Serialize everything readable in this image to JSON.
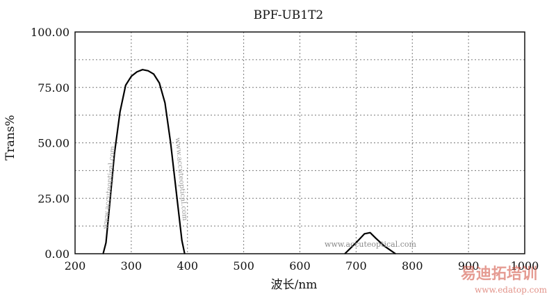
{
  "chart_data": {
    "type": "line",
    "title": "BPF-UB1T2",
    "xlabel": "波长/nm",
    "ylabel": "Trans%",
    "xlim": [
      200,
      1000
    ],
    "ylim": [
      0,
      100
    ],
    "x_ticks": [
      "200",
      "300",
      "400",
      "500",
      "600",
      "700",
      "800",
      "900",
      "1000"
    ],
    "y_ticks": [
      "0.00",
      "25.00",
      "50.00",
      "75.00",
      "100.00"
    ],
    "grid": true,
    "series": [
      {
        "points": [
          [
            250,
            0
          ],
          [
            255,
            5
          ],
          [
            260,
            18
          ],
          [
            270,
            45
          ],
          [
            280,
            64
          ],
          [
            290,
            76
          ],
          [
            300,
            80
          ],
          [
            310,
            82
          ],
          [
            320,
            83
          ],
          [
            330,
            82.5
          ],
          [
            340,
            81
          ],
          [
            350,
            77
          ],
          [
            360,
            68
          ],
          [
            370,
            50
          ],
          [
            380,
            28
          ],
          [
            390,
            6
          ],
          [
            395,
            0
          ]
        ]
      },
      {
        "points": [
          [
            680,
            0
          ],
          [
            700,
            5
          ],
          [
            715,
            9
          ],
          [
            725,
            9.5
          ],
          [
            735,
            7
          ],
          [
            750,
            3.5
          ],
          [
            770,
            0
          ]
        ]
      }
    ],
    "watermarks": [
      "www.accuteoptical.com",
      "易迪拓培训",
      "www.edatop.com"
    ]
  }
}
